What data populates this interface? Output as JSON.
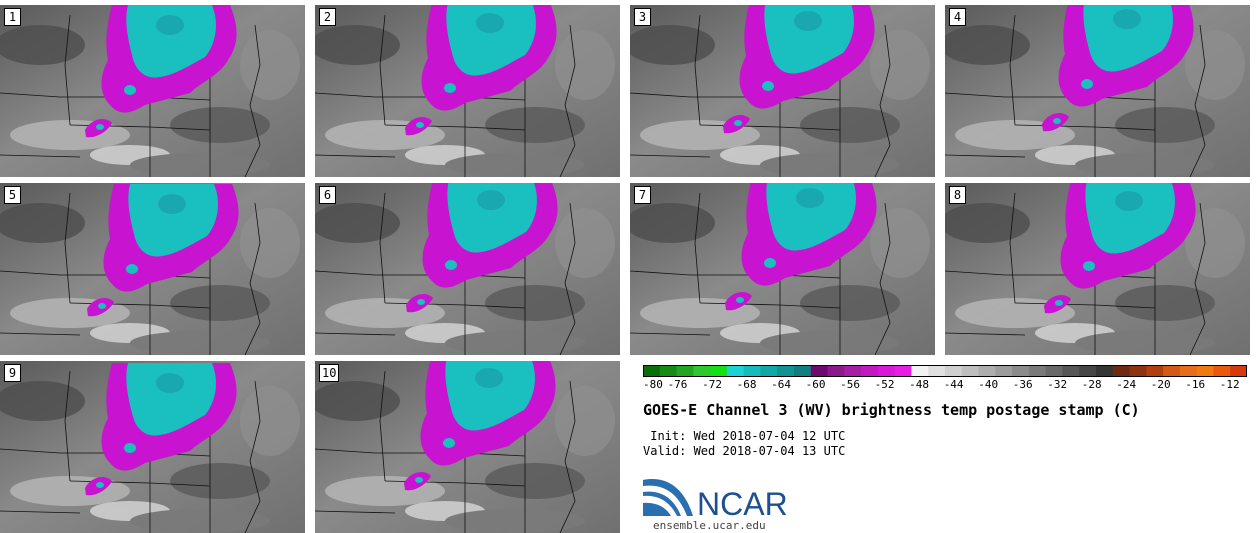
{
  "panels": [
    {
      "label": "1"
    },
    {
      "label": "2"
    },
    {
      "label": "3"
    },
    {
      "label": "4"
    },
    {
      "label": "5"
    },
    {
      "label": "6"
    },
    {
      "label": "7"
    },
    {
      "label": "8"
    },
    {
      "label": "9"
    },
    {
      "label": "10"
    }
  ],
  "colorbar": {
    "min": -80,
    "max": -10,
    "tick_labels": [
      "-80",
      "-76",
      "-72",
      "-68",
      "-64",
      "-60",
      "-56",
      "-52",
      "-48",
      "-44",
      "-40",
      "-36",
      "-32",
      "-28",
      "-24",
      "-20",
      "-16",
      "-12"
    ],
    "tick_values": [
      -80,
      -76,
      -72,
      -68,
      -64,
      -60,
      -56,
      -52,
      -48,
      -44,
      -40,
      -36,
      -32,
      -28,
      -24,
      -20,
      -16,
      -12
    ],
    "colors": [
      "#0a6e0a",
      "#168a16",
      "#22a622",
      "#2ec82e",
      "#14e014",
      "#1ad3d3",
      "#16bcbc",
      "#13a7a7",
      "#119393",
      "#0f7f7f",
      "#6e0a6e",
      "#8a1a8a",
      "#a51fa5",
      "#c11ac1",
      "#d81ad8",
      "#e61ee6",
      "#f2f2f2",
      "#e0e0e0",
      "#cfcfcf",
      "#bebebe",
      "#adadad",
      "#9c9c9c",
      "#8b8b8b",
      "#7a7a7a",
      "#696969",
      "#575757",
      "#464646",
      "#353535",
      "#6e2a10",
      "#8c3410",
      "#b04010",
      "#d25a14",
      "#e66e18",
      "#f07a12",
      "#e85a0e",
      "#d63a0a"
    ]
  },
  "title": "GOES-E Channel 3 (WV) brightness temp postage stamp (C)",
  "init": " Init: Wed 2018-07-04 12 UTC",
  "valid": "Valid: Wed 2018-07-04 13 UTC",
  "logo_text": "NCAR",
  "site": "ensemble.ucar.edu"
}
